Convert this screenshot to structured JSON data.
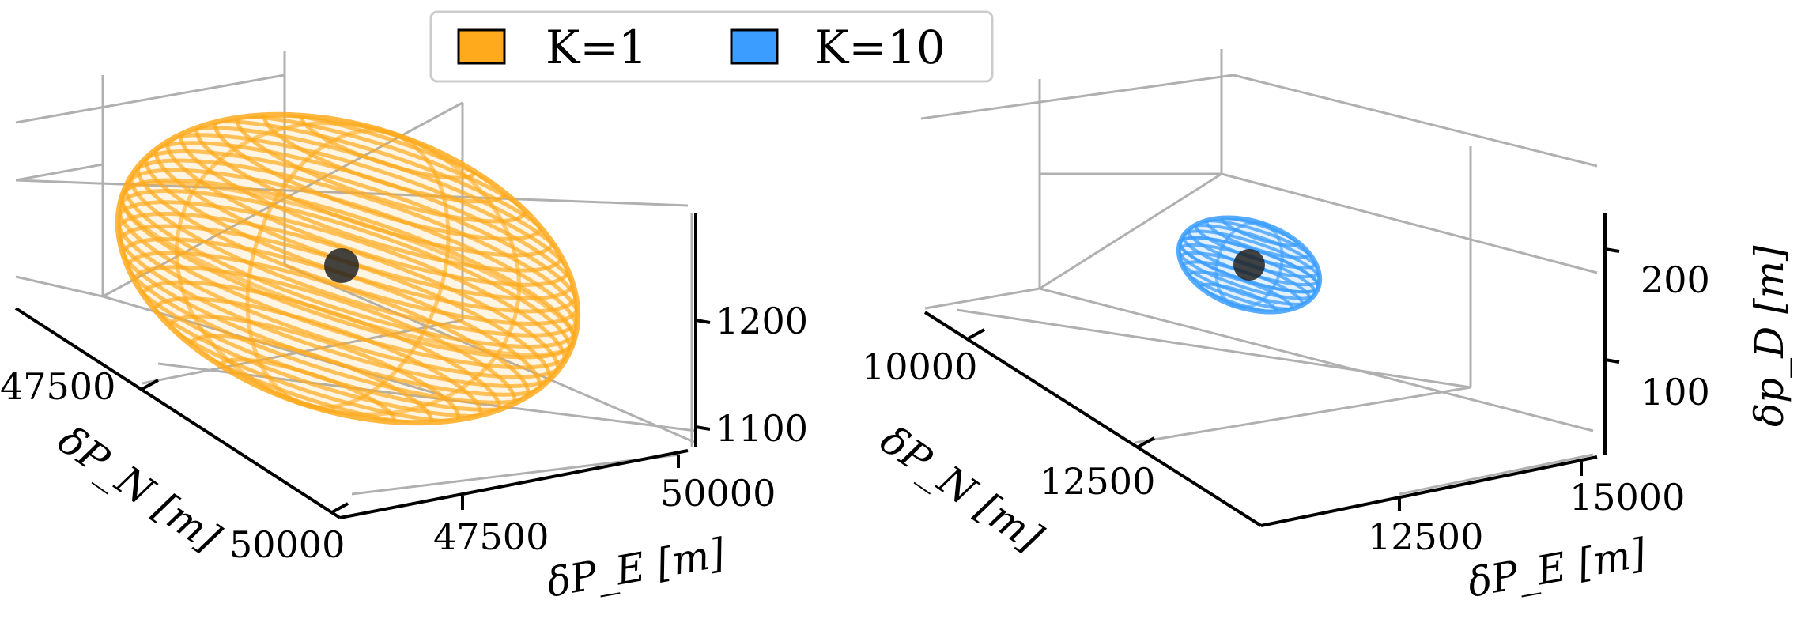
{
  "legend": {
    "items": [
      {
        "label": "K=1",
        "color": "#FFAA1D"
      },
      {
        "label": "K=10",
        "color": "#3A9DFF"
      }
    ]
  },
  "chart_data": [
    {
      "type": "scatter",
      "subtype": "3d-wireframe-ellipsoid",
      "series": [
        {
          "name": "K=1",
          "color": "#FFAA1D"
        }
      ],
      "center": {
        "x": 48000,
        "y": 48200,
        "z": 1180
      },
      "xlabel": "δP_E [m]",
      "ylabel": "δP_N [m]",
      "zlabel": "",
      "xticks": [
        "47500",
        "50000"
      ],
      "yticks": [
        "47500",
        "50000"
      ],
      "zticks": [
        "1100",
        "1200"
      ],
      "grid": true
    },
    {
      "type": "scatter",
      "subtype": "3d-wireframe-ellipsoid",
      "series": [
        {
          "name": "K=10",
          "color": "#3A9DFF"
        }
      ],
      "center": {
        "x": 11200,
        "y": 10300,
        "z": 200
      },
      "xlabel": "δP_E [m]",
      "ylabel": "δP_N [m]",
      "zlabel": "δp_D [m]",
      "xticks": [
        "12500",
        "15000"
      ],
      "yticks": [
        "10000",
        "12500"
      ],
      "zticks": [
        "100",
        "200"
      ],
      "grid": true
    }
  ]
}
